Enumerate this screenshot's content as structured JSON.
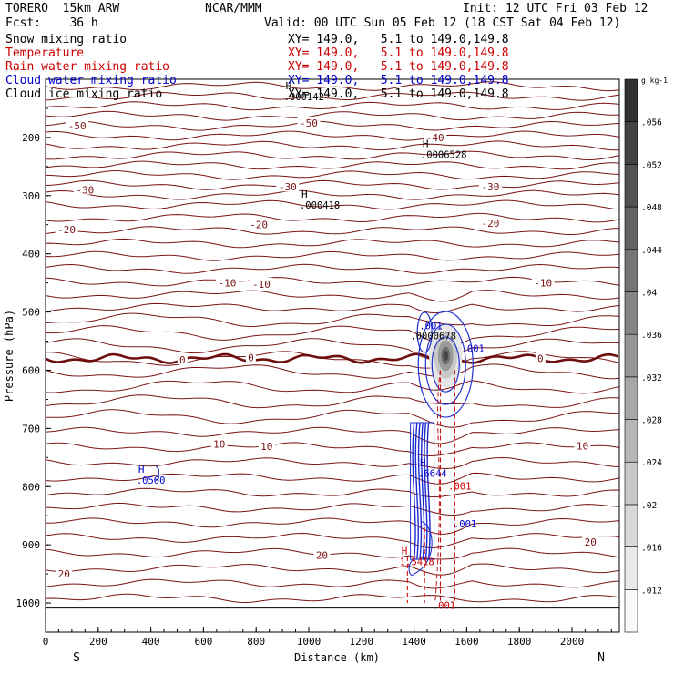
{
  "header": {
    "model": "TORERO  15km ARW",
    "org": "NCAR/MMM",
    "init": "Init: 12 UTC Fri 03 Feb 12",
    "fcst": "Fcst:    36 h",
    "valid": "Valid: 00 UTC Sun 05 Feb 12 (18 CST Sat 04 Feb 12)",
    "fields": [
      {
        "label": "Snow mixing ratio",
        "color": "#000000"
      },
      {
        "label": "Temperature",
        "color": "#cc0000"
      },
      {
        "label": "Rain water mixing ratio",
        "color": "#cc0000"
      },
      {
        "label": "Cloud water mixing ratio",
        "color": "#0000cc"
      },
      {
        "label": "Cloud ice mixing ratio",
        "color": "#000000"
      }
    ],
    "xy": [
      {
        "text": "XY= 149.0,   5.1 to 149.0,149.8",
        "color": "#000000"
      },
      {
        "text": "XY= 149.0,   5.1 to 149.0,149.8",
        "color": "#cc0000"
      },
      {
        "text": "XY= 149.0,   5.1 to 149.0,149.8",
        "color": "#cc0000"
      },
      {
        "text": "XY= 149.0,   5.1 to 149.0,149.8",
        "color": "#0000cc"
      },
      {
        "text": "XY= 149.0,   5.1 to 149.0,149.8",
        "color": "#000000"
      }
    ]
  },
  "chart_data": {
    "type": "cross-section contour",
    "xlabel": "Distance (km)",
    "ylabel": "Pressure (hPa)",
    "xlim": [
      0,
      2180
    ],
    "ylim": [
      1050,
      100
    ],
    "x_ticks": [
      0,
      200,
      400,
      600,
      800,
      1000,
      1200,
      1400,
      1600,
      1800,
      2000
    ],
    "y_ticks": [
      200,
      300,
      400,
      500,
      600,
      700,
      800,
      900,
      1000
    ],
    "end_labels": {
      "left": "S",
      "right": "N"
    },
    "temperature_contours": [
      {
        "value": -50,
        "labels": [
          {
            "x": 120,
            "p": 180
          },
          {
            "x": 1000,
            "p": 175
          }
        ]
      },
      {
        "value": -40,
        "labels": [
          {
            "x": 1480,
            "p": 200
          }
        ]
      },
      {
        "value": -30,
        "labels": [
          {
            "x": 150,
            "p": 290
          },
          {
            "x": 920,
            "p": 285
          },
          {
            "x": 1690,
            "p": 285
          }
        ]
      },
      {
        "value": -20,
        "labels": [
          {
            "x": 80,
            "p": 358
          },
          {
            "x": 810,
            "p": 350
          },
          {
            "x": 1690,
            "p": 347
          }
        ]
      },
      {
        "value": -10,
        "labels": [
          {
            "x": 690,
            "p": 450
          },
          {
            "x": 820,
            "p": 452
          },
          {
            "x": 1890,
            "p": 450
          }
        ]
      },
      {
        "value": 0,
        "labels": [
          {
            "x": 520,
            "p": 582
          },
          {
            "x": 780,
            "p": 578
          },
          {
            "x": 1880,
            "p": 580
          }
        ]
      },
      {
        "value": 10,
        "labels": [
          {
            "x": 660,
            "p": 727
          },
          {
            "x": 840,
            "p": 731
          },
          {
            "x": 2040,
            "p": 730
          }
        ]
      },
      {
        "value": 20,
        "labels": [
          {
            "x": 70,
            "p": 950
          },
          {
            "x": 1050,
            "p": 918
          },
          {
            "x": 2070,
            "p": 895
          }
        ]
      }
    ],
    "maxima": [
      {
        "label": "H",
        "value": ".000142",
        "x": 940,
        "p": 136,
        "color": "#000000"
      },
      {
        "label": "H",
        "value": ".0006528",
        "x": 1460,
        "p": 235,
        "color": "#000000"
      },
      {
        "label": "H",
        "value": ".000418",
        "x": 1000,
        "p": 322,
        "color": "#000000"
      },
      {
        "label": "H",
        "value": ".0560",
        "x": 380,
        "p": 795,
        "color": "#0000cc"
      },
      {
        "label": "H",
        "value": ".6644",
        "x": 1450,
        "p": 783,
        "color": "#0000cc"
      },
      {
        "label": "H",
        "value": "1.5418",
        "x": 1380,
        "p": 935,
        "color": "#cc0000"
      },
      {
        "label": "",
        "value": ".0000678",
        "x": 1420,
        "p": 547,
        "color": "#000000"
      }
    ],
    "contour_labels": [
      {
        "text": ".001",
        "x": 1420,
        "p": 530,
        "color": "#0000cc"
      },
      {
        "text": ".001",
        "x": 1580,
        "p": 569,
        "color": "#0000cc"
      },
      {
        "text": ".001",
        "x": 1550,
        "p": 870,
        "color": "#0000cc"
      },
      {
        "text": ".001",
        "x": 1530,
        "p": 805,
        "color": "#cc0000"
      },
      {
        "text": ".001",
        "x": 1470,
        "p": 1010,
        "color": "#cc0000"
      }
    ],
    "colorbar": {
      "label": "g kg-1",
      "ticks": [
        ".012",
        ".016",
        ".02",
        ".024",
        ".028",
        ".032",
        ".036",
        ".04",
        ".044",
        ".048",
        ".052",
        ".056"
      ]
    }
  }
}
